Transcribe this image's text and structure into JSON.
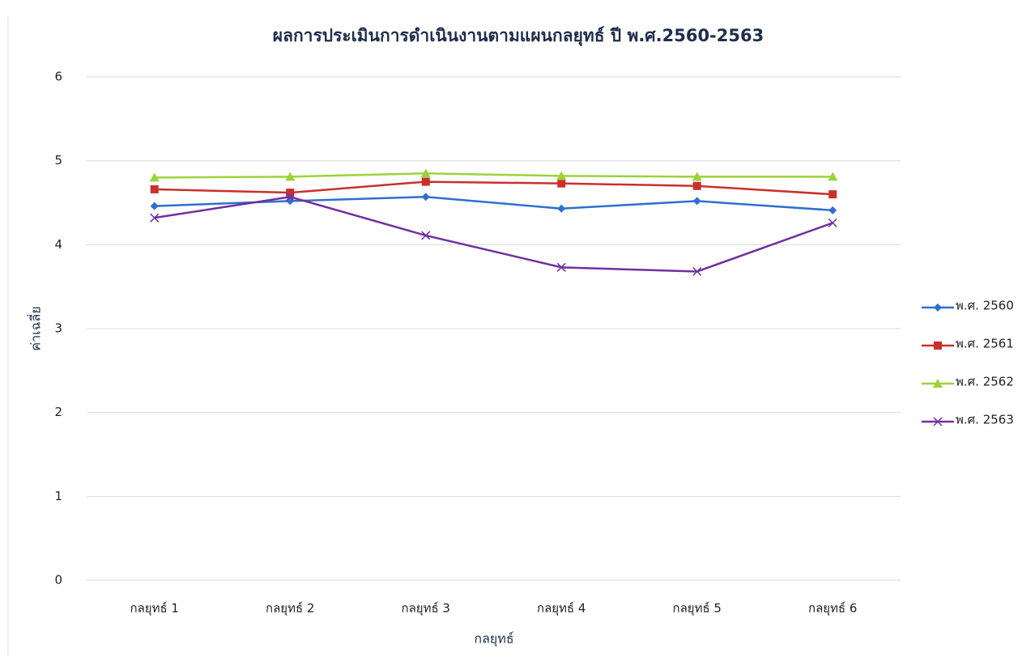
{
  "chart_data": {
    "type": "line",
    "title": "ผลการประเมินการดำเนินงานตามแผนกลยุทธ์ ปี พ.ศ.2560-2563",
    "x_label": "กลยุทธ์",
    "y_label": "ค่าเฉลี่ย",
    "categories": [
      "กลยุทธ์ 1",
      "กลยุทธ์ 2",
      "กลยุทธ์ 3",
      "กลยุทธ์ 4",
      "กลยุทธ์ 5",
      "กลยุทธ์ 6"
    ],
    "series": [
      {
        "name": "พ.ศ. 2560",
        "color": "#2e6fd0",
        "marker": "diamond",
        "values": [
          4.46,
          4.52,
          4.57,
          4.43,
          4.52,
          4.41
        ]
      },
      {
        "name": "พ.ศ. 2561",
        "color": "#c9302c",
        "marker": "square",
        "values": [
          4.66,
          4.62,
          4.75,
          4.73,
          4.7,
          4.6
        ]
      },
      {
        "name": "พ.ศ. 2562",
        "color": "#9bd33a",
        "marker": "triangle",
        "values": [
          4.8,
          4.81,
          4.85,
          4.82,
          4.81,
          4.81
        ]
      },
      {
        "name": "พ.ศ. 2563",
        "color": "#7030a0",
        "marker": "x",
        "values": [
          4.32,
          4.57,
          4.11,
          3.73,
          3.68,
          4.26
        ]
      }
    ],
    "ylim": [
      0,
      6
    ],
    "yticks": [
      0,
      1,
      2,
      3,
      4,
      5,
      6
    ],
    "grid": true,
    "legend": "right"
  }
}
